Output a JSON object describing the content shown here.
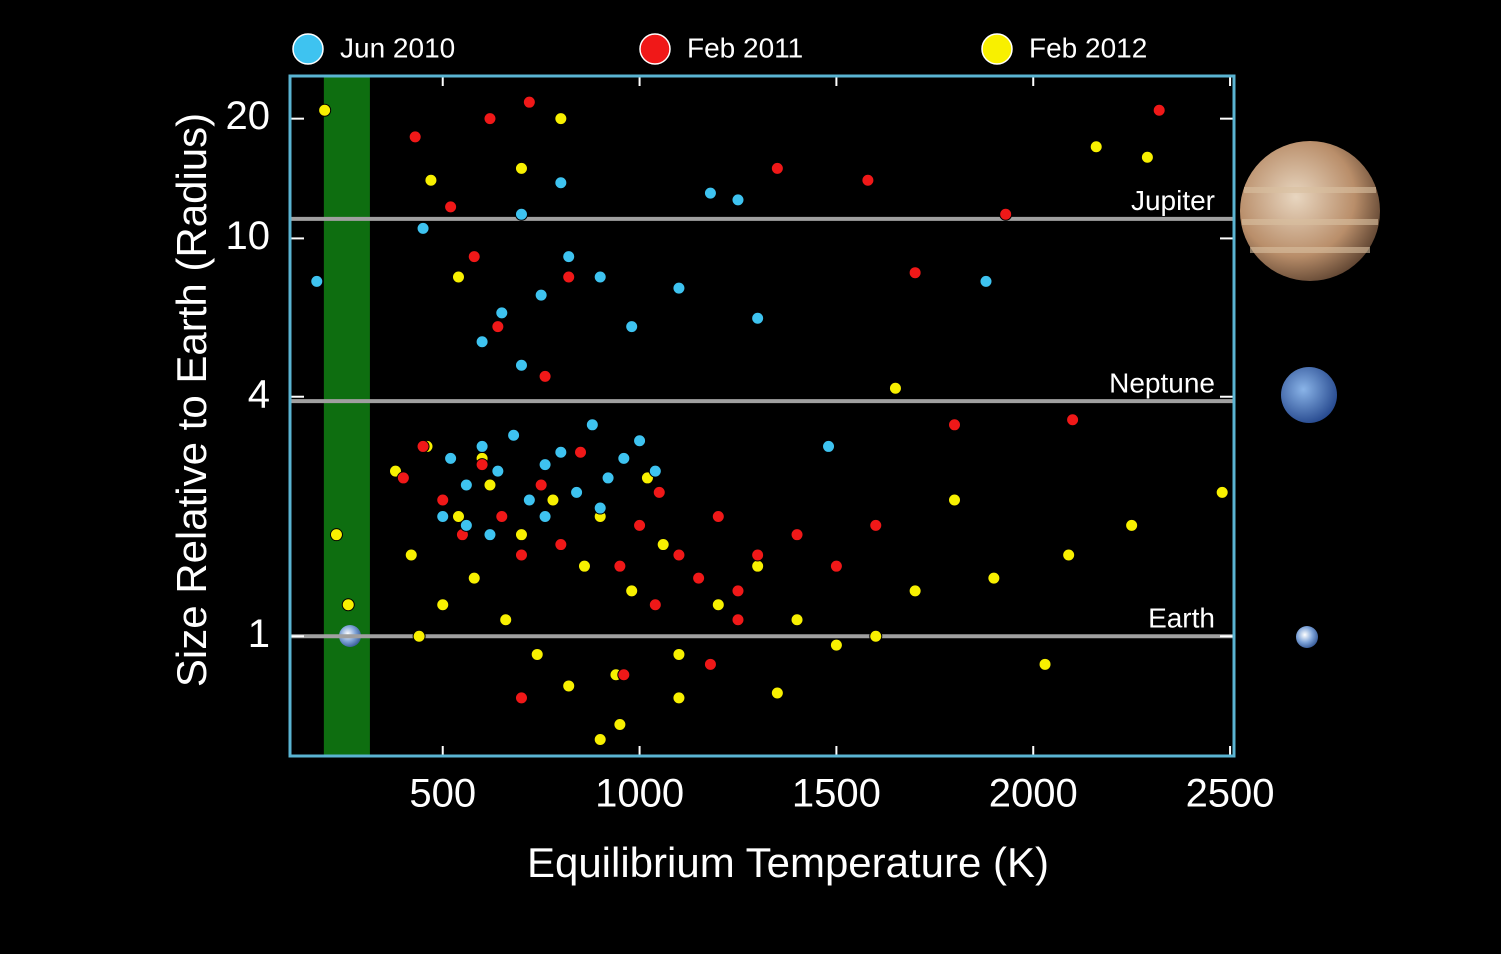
{
  "chart_data": {
    "type": "scatter",
    "xlabel": "Equilibrium Temperature (K)",
    "ylabel": "Size Relative to Earth (Radius)",
    "xlim": [
      112,
      2510
    ],
    "ylim": [
      0.5,
      25.6
    ],
    "ylog": true,
    "xticks": [
      500,
      1000,
      1500,
      2000,
      2500
    ],
    "yticks": [
      1,
      4,
      10,
      20
    ],
    "habitable_zone": [
      198,
      315
    ],
    "reference_lines": [
      {
        "label": "Jupiter",
        "value": 11.2
      },
      {
        "label": "Neptune",
        "value": 3.9
      },
      {
        "label": "Earth",
        "value": 1
      }
    ],
    "series": [
      {
        "name": "Jun 2010",
        "color": "#3ec3f0",
        "x": [
          520,
          560,
          600,
          640,
          680,
          720,
          760,
          800,
          840,
          880,
          920,
          960,
          1000,
          1040,
          600,
          650,
          700,
          750,
          820,
          900,
          980,
          1100,
          1180,
          1250,
          700,
          800,
          500,
          560,
          1480,
          1880,
          180,
          450,
          1300,
          620,
          760,
          900
        ],
        "y": [
          2.8,
          2.4,
          3.0,
          2.6,
          3.2,
          2.2,
          2.7,
          2.9,
          2.3,
          3.4,
          2.5,
          2.8,
          3.1,
          2.6,
          5.5,
          6.5,
          4.8,
          7.2,
          9.0,
          8.0,
          6.0,
          7.5,
          13.0,
          12.5,
          11.5,
          13.8,
          2.0,
          1.9,
          3.0,
          7.8,
          7.8,
          10.6,
          6.3,
          1.8,
          2.0,
          2.1
        ]
      },
      {
        "name": "Feb 2011",
        "color": "#f01818",
        "x": [
          400,
          450,
          500,
          550,
          600,
          650,
          700,
          750,
          800,
          850,
          900,
          950,
          1000,
          1050,
          1100,
          1150,
          1200,
          1250,
          1300,
          1400,
          1500,
          1600,
          1700,
          1800,
          2100,
          2320,
          430,
          520,
          620,
          720,
          820,
          1350,
          1580,
          1930,
          1040,
          1180,
          960,
          640,
          580,
          760,
          1250,
          700
        ],
        "y": [
          2.5,
          3.0,
          2.2,
          1.8,
          2.7,
          2.0,
          1.6,
          2.4,
          1.7,
          2.9,
          2.1,
          1.5,
          1.9,
          2.3,
          1.6,
          1.4,
          2.0,
          1.3,
          1.6,
          1.8,
          1.5,
          1.9,
          8.2,
          3.4,
          3.5,
          21,
          18,
          12,
          20,
          22,
          8,
          15,
          14,
          11.5,
          1.2,
          0.85,
          0.8,
          6,
          9,
          4.5,
          1.1,
          0.7
        ]
      },
      {
        "name": "Feb 2012",
        "color": "#f8f000",
        "x": [
          380,
          420,
          460,
          500,
          540,
          580,
          620,
          660,
          700,
          740,
          780,
          820,
          860,
          900,
          940,
          980,
          1020,
          1060,
          1100,
          1200,
          1300,
          1400,
          1500,
          1600,
          1700,
          1800,
          1900,
          2030,
          2090,
          2250,
          2480,
          2160,
          2290,
          470,
          540,
          700,
          800,
          950,
          1100,
          1350,
          1650,
          200,
          230,
          260,
          440,
          600,
          900
        ],
        "y": [
          2.6,
          1.6,
          3.0,
          1.2,
          2.0,
          1.4,
          2.4,
          1.1,
          1.8,
          0.9,
          2.2,
          0.75,
          1.5,
          2.0,
          0.8,
          1.3,
          2.5,
          1.7,
          0.9,
          1.2,
          1.5,
          1.1,
          0.95,
          1.0,
          1.3,
          2.2,
          1.4,
          0.85,
          1.6,
          1.9,
          2.3,
          17,
          16,
          14,
          8,
          15,
          20,
          0.6,
          0.7,
          0.72,
          4.2,
          21,
          1.8,
          1.2,
          1.0,
          2.8,
          0.55
        ]
      }
    ]
  }
}
